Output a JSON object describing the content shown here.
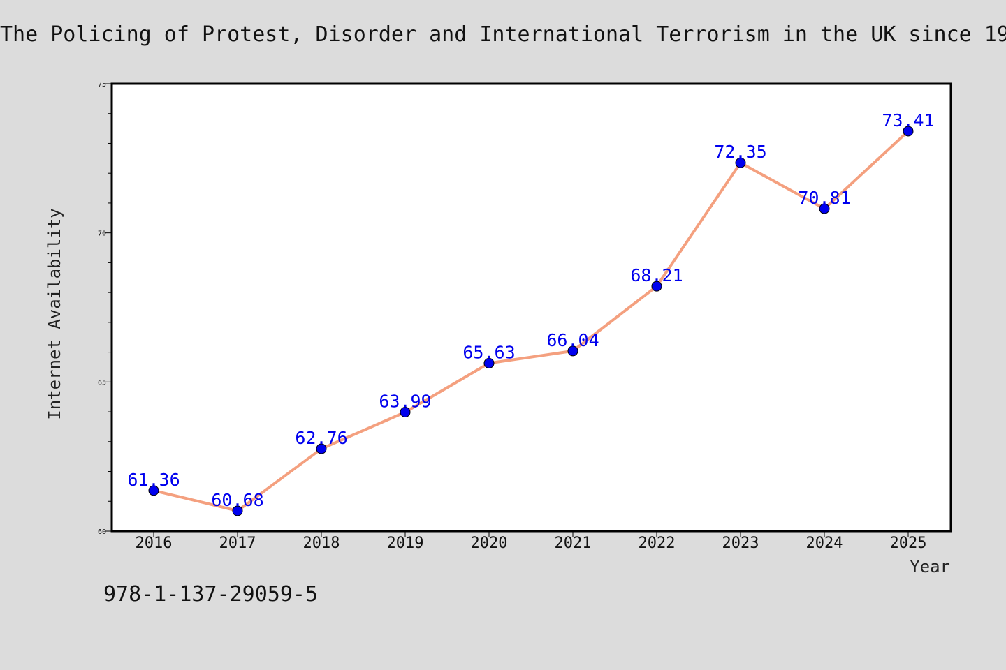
{
  "figure": {
    "title": "The Policing of Protest, Disorder and International Terrorism in the UK since 19",
    "footer_text": "978-1-137-29059-5"
  },
  "colors": {
    "background": "#dcdcdc",
    "plot_background": "#ffffff",
    "line": "#f4a07f",
    "marker": "#0000ee",
    "data_label": "#0000ee",
    "axis": "#000000"
  },
  "chart_data": {
    "type": "line",
    "title": "The Policing of Protest, Disorder and International Terrorism in the UK since 19",
    "xlabel": "Year",
    "ylabel": "Internet Availability",
    "x": [
      "2016",
      "2017",
      "2018",
      "2019",
      "2020",
      "2021",
      "2022",
      "2023",
      "2024",
      "2025"
    ],
    "series": [
      {
        "values": [
          61.36,
          60.68,
          62.76,
          63.99,
          65.63,
          66.04,
          68.21,
          72.35,
          70.81,
          73.41
        ],
        "labels": [
          "61.36",
          "60.68",
          "62.76",
          "63.99",
          "65.63",
          "66.04",
          "68.21",
          "72.35",
          "70.81",
          "73.41"
        ]
      }
    ],
    "ylim": [
      60,
      75
    ],
    "yticks": [
      "60",
      "65",
      "70",
      "75"
    ],
    "y_minor_step": 1,
    "grid": false,
    "legend": "none"
  }
}
